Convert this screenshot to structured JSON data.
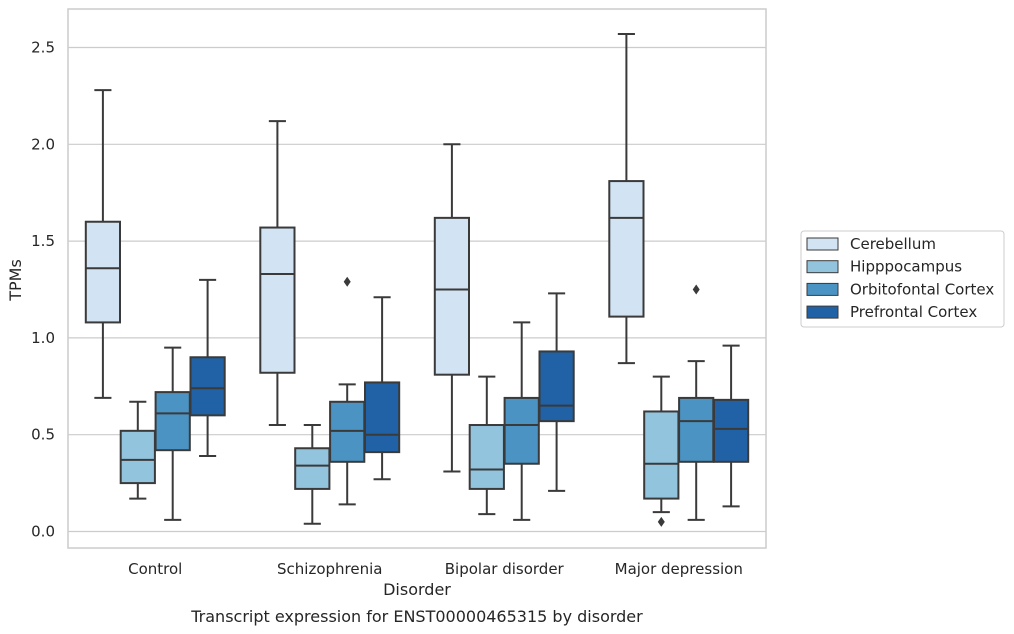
{
  "chart_data": {
    "type": "box",
    "title": "",
    "caption": "Transcript expression for ENST00000465315 by disorder",
    "xlabel": "Disorder",
    "ylabel": "TPMs",
    "ylim": [
      -0.08,
      2.65
    ],
    "yticks": [
      "0.0",
      "0.5",
      "1.0",
      "1.5",
      "2.0",
      "2.5"
    ],
    "grid": "horizontal",
    "legend_position": "right",
    "categories": [
      "Control",
      "Schizophrenia",
      "Bipolar disorder",
      "Major depression"
    ],
    "series": [
      {
        "name": "Cerebellum",
        "color": "#d2e3f3",
        "boxes": [
          {
            "whisker_low": 0.69,
            "q1": 1.08,
            "median": 1.36,
            "q3": 1.6,
            "whisker_high": 2.28,
            "outliers": []
          },
          {
            "whisker_low": 0.55,
            "q1": 0.82,
            "median": 1.33,
            "q3": 1.57,
            "whisker_high": 2.12,
            "outliers": []
          },
          {
            "whisker_low": 0.31,
            "q1": 0.81,
            "median": 1.25,
            "q3": 1.62,
            "whisker_high": 2.0,
            "outliers": []
          },
          {
            "whisker_low": 0.87,
            "q1": 1.11,
            "median": 1.62,
            "q3": 1.81,
            "whisker_high": 2.57,
            "outliers": []
          }
        ]
      },
      {
        "name": "Hipppocampus",
        "color": "#93c4de",
        "boxes": [
          {
            "whisker_low": 0.17,
            "q1": 0.25,
            "median": 0.37,
            "q3": 0.52,
            "whisker_high": 0.67,
            "outliers": []
          },
          {
            "whisker_low": 0.04,
            "q1": 0.22,
            "median": 0.34,
            "q3": 0.43,
            "whisker_high": 0.55,
            "outliers": []
          },
          {
            "whisker_low": 0.09,
            "q1": 0.22,
            "median": 0.32,
            "q3": 0.55,
            "whisker_high": 0.8,
            "outliers": []
          },
          {
            "whisker_low": 0.1,
            "q1": 0.17,
            "median": 0.35,
            "q3": 0.62,
            "whisker_high": 0.8,
            "outliers": [
              0.05
            ]
          }
        ]
      },
      {
        "name": "Orbitofontal Cortex",
        "color": "#4b93c3",
        "boxes": [
          {
            "whisker_low": 0.06,
            "q1": 0.42,
            "median": 0.61,
            "q3": 0.72,
            "whisker_high": 0.95,
            "outliers": []
          },
          {
            "whisker_low": 0.14,
            "q1": 0.36,
            "median": 0.52,
            "q3": 0.67,
            "whisker_high": 0.76,
            "outliers": [
              1.29
            ]
          },
          {
            "whisker_low": 0.06,
            "q1": 0.35,
            "median": 0.55,
            "q3": 0.69,
            "whisker_high": 1.08,
            "outliers": []
          },
          {
            "whisker_low": 0.06,
            "q1": 0.36,
            "median": 0.57,
            "q3": 0.69,
            "whisker_high": 0.88,
            "outliers": [
              1.25
            ]
          }
        ]
      },
      {
        "name": "Prefrontal Cortex",
        "color": "#2162a6",
        "boxes": [
          {
            "whisker_low": 0.39,
            "q1": 0.6,
            "median": 0.74,
            "q3": 0.9,
            "whisker_high": 1.3,
            "outliers": []
          },
          {
            "whisker_low": 0.27,
            "q1": 0.41,
            "median": 0.5,
            "q3": 0.77,
            "whisker_high": 1.21,
            "outliers": []
          },
          {
            "whisker_low": 0.21,
            "q1": 0.57,
            "median": 0.65,
            "q3": 0.93,
            "whisker_high": 1.23,
            "outliers": []
          },
          {
            "whisker_low": 0.13,
            "q1": 0.36,
            "median": 0.53,
            "q3": 0.68,
            "whisker_high": 0.96,
            "outliers": []
          }
        ]
      }
    ],
    "colors": {
      "grid": "#cccccc",
      "frame": "#cccccc",
      "box_edge": "#3a3a3a",
      "text": "#262626",
      "legend_border": "#cccccc"
    }
  }
}
